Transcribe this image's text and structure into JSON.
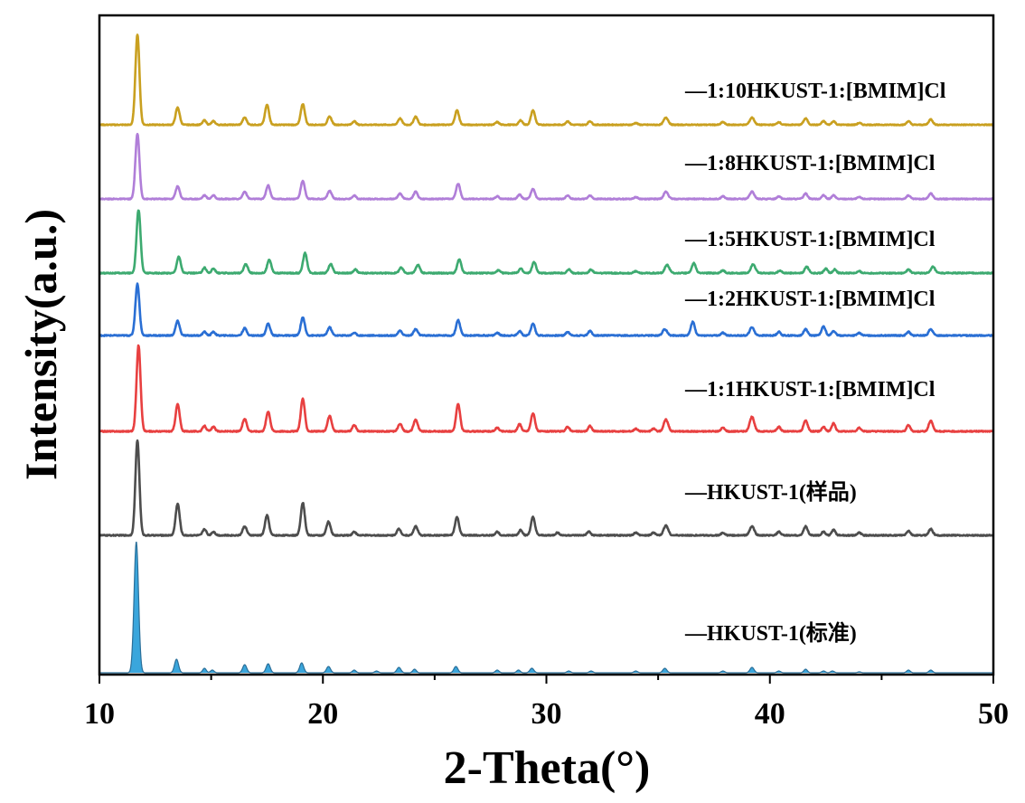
{
  "chart_data": {
    "type": "line",
    "xlabel": "2-Theta(°)",
    "ylabel": "Intensity(a.u.)",
    "xlim": [
      10,
      50
    ],
    "x_ticks": [
      10,
      20,
      30,
      40,
      50
    ],
    "y_ticks_shown": false,
    "grid": false,
    "legend": "inline labels to the right of each trace",
    "series": [
      {
        "name": "—HKUST-1(标准)",
        "color": "#3aa6dc",
        "filled": true,
        "offset": 0,
        "baseline": 0,
        "noise": 0.0,
        "peaks": [
          [
            11.65,
            145,
            0.1
          ],
          [
            13.45,
            15,
            0.09
          ],
          [
            14.7,
            5,
            0.08
          ],
          [
            15.05,
            3,
            0.08
          ],
          [
            16.5,
            9,
            0.09
          ],
          [
            17.55,
            10,
            0.09
          ],
          [
            19.05,
            11,
            0.09
          ],
          [
            20.25,
            7,
            0.09
          ],
          [
            21.4,
            3,
            0.08
          ],
          [
            22.4,
            2,
            0.08
          ],
          [
            23.4,
            6,
            0.09
          ],
          [
            24.1,
            4,
            0.08
          ],
          [
            25.95,
            7,
            0.09
          ],
          [
            27.8,
            3,
            0.08
          ],
          [
            28.75,
            3,
            0.08
          ],
          [
            29.35,
            5,
            0.09
          ],
          [
            31.0,
            2,
            0.08
          ],
          [
            32.0,
            2,
            0.08
          ],
          [
            34.0,
            2,
            0.08
          ],
          [
            35.3,
            5,
            0.09
          ],
          [
            37.9,
            2,
            0.08
          ],
          [
            39.2,
            6,
            0.09
          ],
          [
            40.4,
            2,
            0.08
          ],
          [
            41.6,
            4,
            0.08
          ],
          [
            42.4,
            2,
            0.08
          ],
          [
            42.8,
            2,
            0.08
          ],
          [
            44.0,
            1,
            0.08
          ],
          [
            46.2,
            3,
            0.08
          ],
          [
            47.2,
            3,
            0.08
          ]
        ]
      },
      {
        "name": "—HKUST-1(样品)",
        "color": "#4d4d4d",
        "filled": false,
        "offset": 150,
        "baseline": 2,
        "noise": 0.6,
        "peaks": [
          [
            11.7,
            105,
            0.09
          ],
          [
            13.5,
            35,
            0.09
          ],
          [
            14.7,
            7,
            0.08
          ],
          [
            15.1,
            4,
            0.08
          ],
          [
            16.5,
            10,
            0.09
          ],
          [
            17.5,
            22,
            0.09
          ],
          [
            19.1,
            36,
            0.09
          ],
          [
            20.25,
            15,
            0.09
          ],
          [
            21.4,
            4,
            0.08
          ],
          [
            23.4,
            7,
            0.09
          ],
          [
            24.15,
            10,
            0.09
          ],
          [
            26.0,
            20,
            0.09
          ],
          [
            27.8,
            4,
            0.08
          ],
          [
            28.85,
            6,
            0.08
          ],
          [
            29.4,
            20,
            0.09
          ],
          [
            30.5,
            3,
            0.08
          ],
          [
            31.9,
            4,
            0.08
          ],
          [
            34.0,
            3,
            0.08
          ],
          [
            34.8,
            3,
            0.08
          ],
          [
            35.35,
            11,
            0.1
          ],
          [
            37.9,
            3,
            0.08
          ],
          [
            39.2,
            10,
            0.1
          ],
          [
            40.4,
            4,
            0.08
          ],
          [
            41.6,
            10,
            0.09
          ],
          [
            42.4,
            4,
            0.08
          ],
          [
            42.85,
            6,
            0.08
          ],
          [
            44.0,
            3,
            0.08
          ],
          [
            46.2,
            5,
            0.08
          ],
          [
            47.2,
            7,
            0.09
          ]
        ]
      },
      {
        "name": "—1:1HKUST-1:[BMIM]Cl",
        "color": "#e84040",
        "filled": false,
        "offset": 265,
        "baseline": 2,
        "noise": 0.6,
        "peaks": [
          [
            11.75,
            95,
            0.09
          ],
          [
            13.5,
            30,
            0.09
          ],
          [
            14.7,
            6,
            0.08
          ],
          [
            15.1,
            5,
            0.08
          ],
          [
            16.5,
            14,
            0.09
          ],
          [
            17.55,
            22,
            0.09
          ],
          [
            19.1,
            36,
            0.09
          ],
          [
            20.3,
            17,
            0.09
          ],
          [
            21.4,
            7,
            0.08
          ],
          [
            23.45,
            8,
            0.09
          ],
          [
            24.15,
            13,
            0.09
          ],
          [
            26.05,
            30,
            0.09
          ],
          [
            27.8,
            4,
            0.08
          ],
          [
            28.8,
            8,
            0.08
          ],
          [
            29.4,
            20,
            0.09
          ],
          [
            30.95,
            5,
            0.08
          ],
          [
            31.95,
            6,
            0.08
          ],
          [
            34.0,
            3,
            0.08
          ],
          [
            34.8,
            3,
            0.08
          ],
          [
            35.35,
            13,
            0.1
          ],
          [
            37.9,
            4,
            0.08
          ],
          [
            39.2,
            16,
            0.1
          ],
          [
            40.4,
            5,
            0.08
          ],
          [
            41.6,
            12,
            0.09
          ],
          [
            42.4,
            5,
            0.08
          ],
          [
            42.85,
            9,
            0.08
          ],
          [
            44.0,
            4,
            0.08
          ],
          [
            46.2,
            7,
            0.08
          ],
          [
            47.2,
            12,
            0.09
          ]
        ]
      },
      {
        "name": "—1:2HKUST-1:[BMIM]Cl",
        "color": "#2a6fd4",
        "filled": false,
        "offset": 371,
        "baseline": 2,
        "noise": 0.6,
        "peaks": [
          [
            11.7,
            57,
            0.09
          ],
          [
            13.5,
            16,
            0.09
          ],
          [
            14.7,
            4,
            0.08
          ],
          [
            15.1,
            4,
            0.08
          ],
          [
            16.5,
            8,
            0.09
          ],
          [
            17.55,
            13,
            0.09
          ],
          [
            19.1,
            20,
            0.09
          ],
          [
            20.3,
            9,
            0.09
          ],
          [
            21.4,
            3,
            0.08
          ],
          [
            23.45,
            5,
            0.09
          ],
          [
            24.15,
            7,
            0.09
          ],
          [
            26.05,
            17,
            0.09
          ],
          [
            27.8,
            3,
            0.08
          ],
          [
            28.8,
            5,
            0.08
          ],
          [
            29.4,
            13,
            0.09
          ],
          [
            30.95,
            4,
            0.08
          ],
          [
            31.95,
            5,
            0.08
          ],
          [
            35.3,
            7,
            0.1
          ],
          [
            36.55,
            15,
            0.09
          ],
          [
            37.9,
            3,
            0.08
          ],
          [
            39.2,
            9,
            0.1
          ],
          [
            40.4,
            4,
            0.08
          ],
          [
            41.6,
            7,
            0.09
          ],
          [
            42.4,
            10,
            0.09
          ],
          [
            42.85,
            5,
            0.08
          ],
          [
            44.0,
            3,
            0.08
          ],
          [
            46.2,
            4,
            0.08
          ],
          [
            47.2,
            7,
            0.09
          ]
        ]
      },
      {
        "name": "—1:5HKUST-1:[BMIM]Cl",
        "color": "#3daa70",
        "filled": false,
        "offset": 440,
        "baseline": 2,
        "noise": 0.6,
        "peaks": [
          [
            11.75,
            70,
            0.09
          ],
          [
            13.55,
            18,
            0.09
          ],
          [
            14.7,
            6,
            0.08
          ],
          [
            15.1,
            5,
            0.08
          ],
          [
            16.55,
            10,
            0.09
          ],
          [
            17.6,
            15,
            0.09
          ],
          [
            19.2,
            22,
            0.09
          ],
          [
            20.35,
            10,
            0.09
          ],
          [
            21.45,
            4,
            0.08
          ],
          [
            23.5,
            6,
            0.09
          ],
          [
            24.25,
            9,
            0.09
          ],
          [
            26.1,
            15,
            0.09
          ],
          [
            27.85,
            3,
            0.08
          ],
          [
            28.85,
            5,
            0.08
          ],
          [
            29.45,
            12,
            0.09
          ],
          [
            31.0,
            4,
            0.08
          ],
          [
            32.0,
            4,
            0.08
          ],
          [
            34.0,
            2,
            0.08
          ],
          [
            35.4,
            9,
            0.1
          ],
          [
            36.6,
            11,
            0.09
          ],
          [
            37.9,
            3,
            0.08
          ],
          [
            39.25,
            10,
            0.1
          ],
          [
            40.45,
            3,
            0.08
          ],
          [
            41.65,
            7,
            0.09
          ],
          [
            42.5,
            5,
            0.08
          ],
          [
            42.9,
            4,
            0.08
          ],
          [
            44.0,
            2,
            0.08
          ],
          [
            46.2,
            4,
            0.08
          ],
          [
            47.3,
            7,
            0.09
          ]
        ]
      },
      {
        "name": "—1:8HKUST-1:[BMIM]Cl",
        "color": "#b07ed8",
        "filled": false,
        "offset": 522,
        "baseline": 2,
        "noise": 0.5,
        "peaks": [
          [
            11.7,
            72,
            0.09
          ],
          [
            13.5,
            14,
            0.09
          ],
          [
            14.7,
            4,
            0.08
          ],
          [
            15.1,
            4,
            0.08
          ],
          [
            16.5,
            8,
            0.09
          ],
          [
            17.55,
            15,
            0.09
          ],
          [
            19.1,
            20,
            0.09
          ],
          [
            20.3,
            9,
            0.09
          ],
          [
            21.4,
            4,
            0.08
          ],
          [
            23.45,
            6,
            0.09
          ],
          [
            24.15,
            8,
            0.09
          ],
          [
            26.05,
            17,
            0.09
          ],
          [
            27.8,
            3,
            0.08
          ],
          [
            28.8,
            5,
            0.08
          ],
          [
            29.4,
            11,
            0.09
          ],
          [
            30.95,
            4,
            0.08
          ],
          [
            31.95,
            4,
            0.08
          ],
          [
            34.0,
            2,
            0.08
          ],
          [
            35.35,
            8,
            0.1
          ],
          [
            37.9,
            3,
            0.08
          ],
          [
            39.2,
            8,
            0.1
          ],
          [
            40.4,
            3,
            0.08
          ],
          [
            41.6,
            6,
            0.09
          ],
          [
            42.4,
            4,
            0.08
          ],
          [
            42.85,
            4,
            0.08
          ],
          [
            44.0,
            2,
            0.08
          ],
          [
            46.2,
            4,
            0.08
          ],
          [
            47.2,
            6,
            0.09
          ]
        ]
      },
      {
        "name": "—1:10HKUST-1:[BMIM]Cl",
        "color": "#c9a020",
        "filled": false,
        "offset": 604,
        "baseline": 2,
        "noise": 0.5,
        "peaks": [
          [
            11.7,
            100,
            0.09
          ],
          [
            13.5,
            19,
            0.09
          ],
          [
            14.7,
            5,
            0.08
          ],
          [
            15.1,
            4,
            0.08
          ],
          [
            16.5,
            8,
            0.09
          ],
          [
            17.5,
            22,
            0.09
          ],
          [
            19.1,
            23,
            0.09
          ],
          [
            20.3,
            9,
            0.09
          ],
          [
            21.4,
            4,
            0.08
          ],
          [
            23.45,
            7,
            0.09
          ],
          [
            24.15,
            9,
            0.09
          ],
          [
            26.0,
            16,
            0.09
          ],
          [
            27.8,
            3,
            0.08
          ],
          [
            28.85,
            5,
            0.08
          ],
          [
            29.4,
            16,
            0.09
          ],
          [
            30.95,
            4,
            0.08
          ],
          [
            31.95,
            4,
            0.08
          ],
          [
            34.0,
            2,
            0.08
          ],
          [
            35.35,
            8,
            0.1
          ],
          [
            37.9,
            3,
            0.08
          ],
          [
            39.2,
            8,
            0.1
          ],
          [
            40.4,
            3,
            0.08
          ],
          [
            41.6,
            7,
            0.09
          ],
          [
            42.4,
            4,
            0.08
          ],
          [
            42.85,
            4,
            0.08
          ],
          [
            44.0,
            2,
            0.08
          ],
          [
            46.2,
            4,
            0.08
          ],
          [
            47.2,
            6,
            0.09
          ]
        ]
      }
    ]
  }
}
